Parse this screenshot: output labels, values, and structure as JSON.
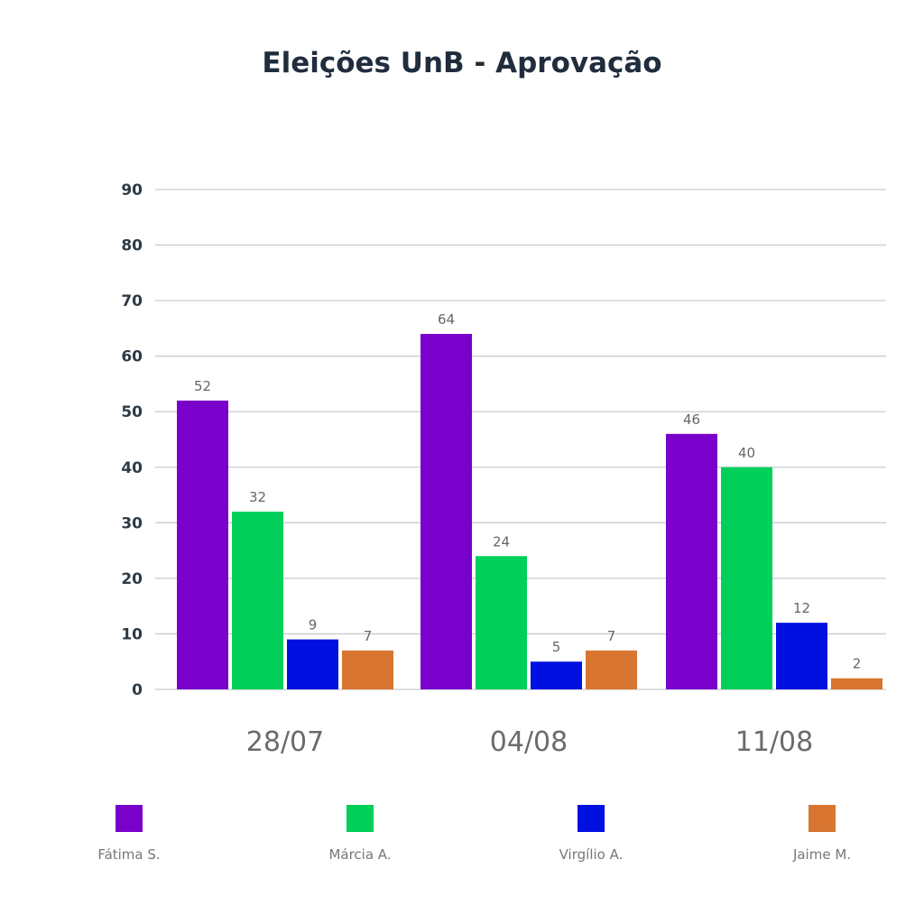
{
  "chart_data": {
    "type": "bar",
    "title": "Eleições UnB - Aprovação",
    "xlabel": "",
    "ylabel": "",
    "categories": [
      "28/07",
      "04/08",
      "11/08"
    ],
    "ylim": [
      0,
      90
    ],
    "yticks": [
      0,
      10,
      20,
      30,
      40,
      50,
      60,
      70,
      80,
      90
    ],
    "grid": true,
    "legend_position": "bottom",
    "series": [
      {
        "name": "Fátima S.",
        "color": "#7a00cc",
        "values": [
          52,
          64,
          46
        ]
      },
      {
        "name": "Márcia A.",
        "color": "#00d05a",
        "values": [
          32,
          24,
          40
        ]
      },
      {
        "name": "Virgílio A.",
        "color": "#0010e0",
        "values": [
          9,
          5,
          12
        ]
      },
      {
        "name": "Jaime M.",
        "color": "#d87530",
        "values": [
          7,
          7,
          2
        ]
      }
    ]
  }
}
